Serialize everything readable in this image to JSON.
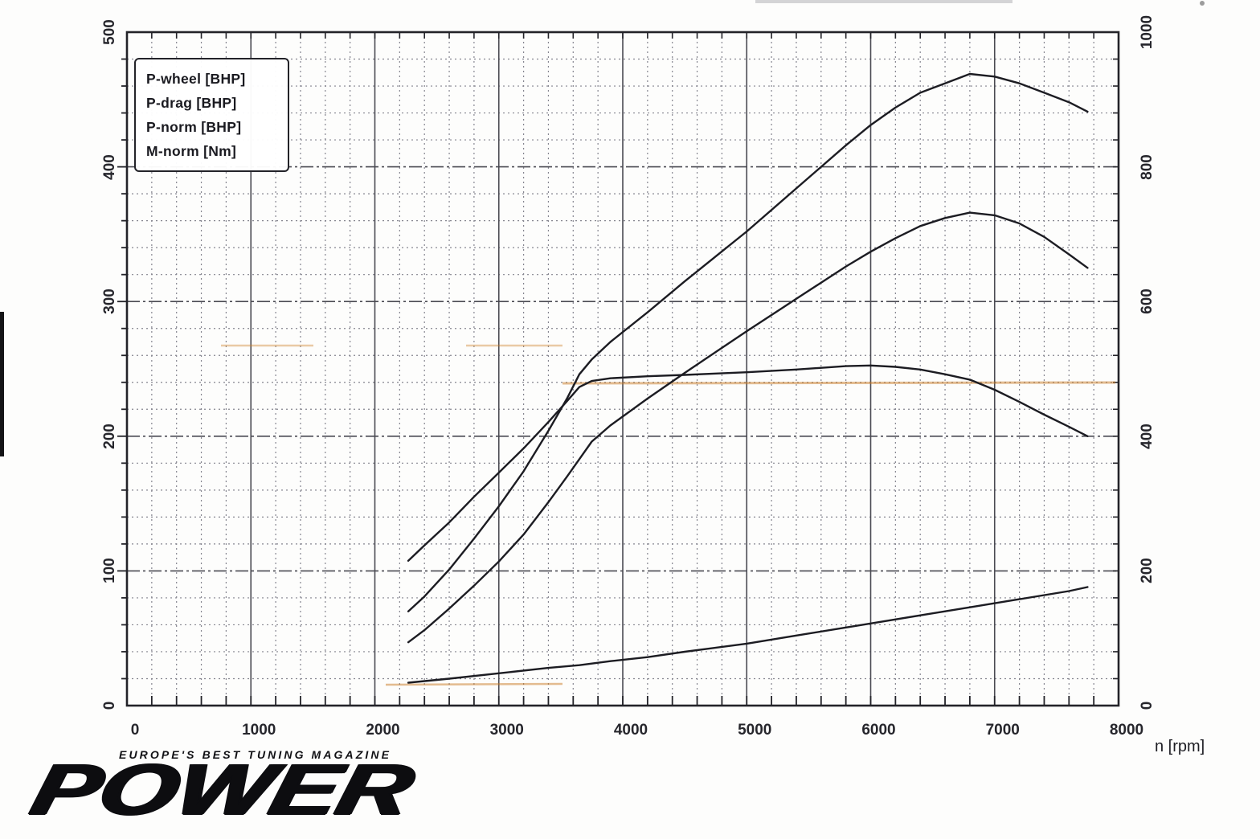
{
  "legend": {
    "items": [
      "P-wheel [BHP]",
      "P-drag [BHP]",
      "P-norm [BHP]",
      "M-norm [Nm]"
    ]
  },
  "axes": {
    "x": {
      "title": "n [rpm]",
      "ticks": [
        0,
        1000,
        2000,
        3000,
        4000,
        5000,
        6000,
        7000,
        8000
      ]
    },
    "left": {
      "ticks": [
        500,
        400,
        300,
        200,
        100,
        0
      ]
    },
    "right": {
      "ticks": [
        1000,
        800,
        600,
        400,
        200,
        0
      ]
    }
  },
  "footer": {
    "tagline": "EUROPE'S BEST TUNING MAGAZINE",
    "logo_text": "POWER"
  },
  "colors": {
    "curve": "#1c1c22",
    "grid_major": "#4a4a52",
    "grid_minor": "#85858f",
    "axis": "#232329",
    "artifact_orange": "#c97a22"
  },
  "chart_data": {
    "type": "line",
    "title": "",
    "xlabel": "n [rpm]",
    "xlim": [
      0,
      8000
    ],
    "x_major_step": 1000,
    "x_minor_step": 200,
    "grid": true,
    "legend_position": "top-left",
    "axes": {
      "left": {
        "unit": "BHP",
        "lim": [
          0,
          500
        ],
        "major_step": 100,
        "minor_step": 20
      },
      "right": {
        "unit": "Nm",
        "lim": [
          0,
          1000
        ],
        "major_step": 200,
        "minor_step": 40
      }
    },
    "series": [
      {
        "name": "P-drag [BHP]",
        "axis": "left",
        "unit": "BHP",
        "points": [
          [
            2270,
            17
          ],
          [
            2600,
            20
          ],
          [
            3000,
            24
          ],
          [
            3400,
            28
          ],
          [
            3650,
            30
          ],
          [
            3900,
            33
          ],
          [
            4200,
            36
          ],
          [
            4500,
            40
          ],
          [
            5000,
            46
          ],
          [
            5400,
            52
          ],
          [
            5800,
            58
          ],
          [
            6000,
            61
          ],
          [
            6400,
            67
          ],
          [
            6800,
            73
          ],
          [
            7200,
            79
          ],
          [
            7600,
            85
          ],
          [
            7750,
            88
          ]
        ]
      },
      {
        "name": "M-norm [Nm]",
        "axis": "right",
        "unit": "Nm",
        "points": [
          [
            2270,
            215
          ],
          [
            2400,
            238
          ],
          [
            2600,
            272
          ],
          [
            2800,
            310
          ],
          [
            3000,
            346
          ],
          [
            3200,
            382
          ],
          [
            3400,
            421
          ],
          [
            3550,
            452
          ],
          [
            3650,
            473
          ],
          [
            3750,
            482
          ],
          [
            3900,
            486
          ],
          [
            4200,
            489
          ],
          [
            4500,
            491
          ],
          [
            5000,
            495
          ],
          [
            5400,
            499
          ],
          [
            5800,
            504
          ],
          [
            6000,
            505
          ],
          [
            6200,
            503
          ],
          [
            6400,
            499
          ],
          [
            6600,
            492
          ],
          [
            6800,
            484
          ],
          [
            7000,
            469
          ],
          [
            7200,
            451
          ],
          [
            7400,
            432
          ],
          [
            7600,
            414
          ],
          [
            7750,
            400
          ]
        ]
      },
      {
        "name": "P-norm [BHP]",
        "axis": "left",
        "unit": "BHP",
        "points": [
          [
            2270,
            70
          ],
          [
            2400,
            81
          ],
          [
            2600,
            101
          ],
          [
            2800,
            124
          ],
          [
            3000,
            148
          ],
          [
            3200,
            174
          ],
          [
            3400,
            204
          ],
          [
            3550,
            228
          ],
          [
            3650,
            246
          ],
          [
            3750,
            257
          ],
          [
            3900,
            270
          ],
          [
            4200,
            292
          ],
          [
            4500,
            315
          ],
          [
            5000,
            352
          ],
          [
            5400,
            384
          ],
          [
            5800,
            416
          ],
          [
            6000,
            431
          ],
          [
            6200,
            444
          ],
          [
            6400,
            455
          ],
          [
            6600,
            462
          ],
          [
            6800,
            469
          ],
          [
            7000,
            467
          ],
          [
            7200,
            462
          ],
          [
            7400,
            455
          ],
          [
            7600,
            448
          ],
          [
            7750,
            441
          ]
        ]
      },
      {
        "name": "P-wheel [BHP]",
        "axis": "left",
        "unit": "BHP",
        "points": [
          [
            2270,
            47
          ],
          [
            2400,
            56
          ],
          [
            2600,
            72
          ],
          [
            2800,
            89
          ],
          [
            3000,
            107
          ],
          [
            3200,
            127
          ],
          [
            3400,
            151
          ],
          [
            3550,
            170
          ],
          [
            3650,
            183
          ],
          [
            3750,
            196
          ],
          [
            3900,
            208
          ],
          [
            4200,
            228
          ],
          [
            4500,
            247
          ],
          [
            5000,
            278
          ],
          [
            5400,
            302
          ],
          [
            5800,
            326
          ],
          [
            6000,
            337
          ],
          [
            6200,
            347
          ],
          [
            6400,
            356
          ],
          [
            6600,
            362
          ],
          [
            6800,
            366
          ],
          [
            7000,
            364
          ],
          [
            7200,
            358
          ],
          [
            7400,
            348
          ],
          [
            7600,
            335
          ],
          [
            7750,
            325
          ]
        ]
      }
    ],
    "annotations": {
      "peak_power_norm_bhp": 469,
      "peak_power_norm_rpm": 6800,
      "peak_torque_nm": 505,
      "peak_torque_rpm": 6000
    }
  }
}
